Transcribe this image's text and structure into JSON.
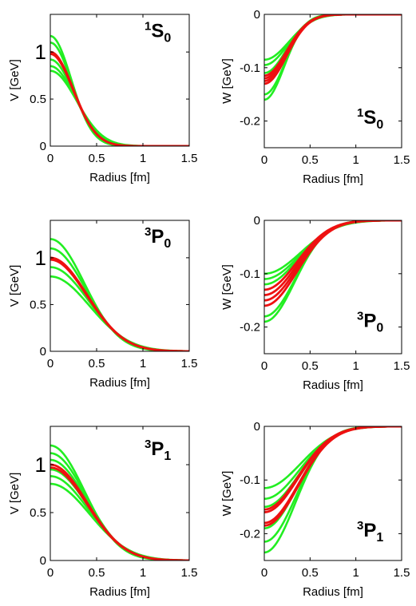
{
  "chart_data": [
    {
      "type": "line",
      "panel": "V",
      "wave": {
        "sup": "1",
        "main": "S",
        "sub": "0"
      },
      "xlabel": "Radius [fm]",
      "ylabel": "V [GeV]",
      "xlim": [
        0,
        1.5
      ],
      "ylim": [
        0,
        1.4
      ],
      "xticks": [
        "0",
        "0.5",
        "1",
        "1.5"
      ],
      "xtick_values": [
        0,
        0.5,
        1,
        1.5
      ],
      "yticks": [
        "0",
        "0.5",
        "1"
      ],
      "ytick_values": [
        0,
        0.5,
        1
      ],
      "big_tick": "1",
      "colors": {
        "band": "#22ee22",
        "central": "#ee1111"
      },
      "band_depths": [
        0.8,
        0.85,
        0.92,
        1.1,
        1.17
      ],
      "band_widths": [
        0.4,
        0.38,
        0.36,
        0.33,
        0.32
      ],
      "central_depths": [
        0.98,
        1.0
      ],
      "central_width": 0.35,
      "label_ypos": 1.16
    },
    {
      "type": "line",
      "panel": "W",
      "wave": {
        "sup": "1",
        "main": "S",
        "sub": "0"
      },
      "xlabel": "Radius [fm]",
      "ylabel": "W [GeV]",
      "xlim": [
        0,
        1.5
      ],
      "ylim": [
        -0.25,
        0
      ],
      "xticks": [
        "0",
        "0.5",
        "1",
        "1.5"
      ],
      "xtick_values": [
        0,
        0.5,
        1,
        1.5
      ],
      "yticks": [
        "0",
        "-0.1",
        "-0.2"
      ],
      "ytick_values": [
        0,
        -0.1,
        -0.2
      ],
      "colors": {
        "band": "#22ee22",
        "central": "#ee1111"
      },
      "band_depths": [
        -0.085,
        -0.095,
        -0.11,
        -0.15,
        -0.16
      ],
      "band_widths": [
        0.38,
        0.36,
        0.34,
        0.32,
        0.31
      ],
      "central_depths": [
        -0.115,
        -0.12,
        -0.125,
        -0.13
      ],
      "central_width": 0.34,
      "label_ypos": -0.205
    },
    {
      "type": "line",
      "panel": "V",
      "wave": {
        "sup": "3",
        "main": "P",
        "sub": "0"
      },
      "xlabel": "Radius [fm]",
      "ylabel": "V [GeV]",
      "xlim": [
        0,
        1.5
      ],
      "ylim": [
        0,
        1.4
      ],
      "xticks": [
        "0",
        "0.5",
        "1",
        "1.5"
      ],
      "xtick_values": [
        0,
        0.5,
        1,
        1.5
      ],
      "yticks": [
        "0",
        "0.5",
        "1"
      ],
      "ytick_values": [
        0,
        0.5,
        1
      ],
      "big_tick": "1",
      "colors": {
        "band": "#22ee22",
        "central": "#ee1111"
      },
      "band_depths": [
        0.8,
        0.9,
        1.1,
        1.2
      ],
      "band_widths": [
        0.6,
        0.58,
        0.54,
        0.52
      ],
      "central_depths": [
        0.98,
        1.0
      ],
      "central_width": 0.56,
      "label_ypos": 1.16
    },
    {
      "type": "line",
      "panel": "W",
      "wave": {
        "sup": "3",
        "main": "P",
        "sub": "0"
      },
      "xlabel": "Radius [fm]",
      "ylabel": "W [GeV]",
      "xlim": [
        0,
        1.5
      ],
      "ylim": [
        -0.25,
        0
      ],
      "xticks": [
        "0",
        "0.5",
        "1",
        "1.5"
      ],
      "xtick_values": [
        0,
        0.5,
        1,
        1.5
      ],
      "yticks": [
        "0",
        "-0.1",
        "-0.2"
      ],
      "ytick_values": [
        0,
        -0.1,
        -0.2
      ],
      "colors": {
        "band": "#22ee22",
        "central": "#ee1111"
      },
      "band_depths": [
        -0.1,
        -0.11,
        -0.12,
        -0.18,
        -0.19
      ],
      "band_widths": [
        0.56,
        0.54,
        0.52,
        0.48,
        0.47
      ],
      "central_depths": [
        -0.13,
        -0.14,
        -0.15,
        -0.16
      ],
      "central_width": 0.5,
      "label_ypos": -0.2
    },
    {
      "type": "line",
      "panel": "V",
      "wave": {
        "sup": "3",
        "main": "P",
        "sub": "1"
      },
      "xlabel": "Radius [fm]",
      "ylabel": "V [GeV]",
      "xlim": [
        0,
        1.5
      ],
      "ylim": [
        0,
        1.4
      ],
      "xticks": [
        "0",
        "0.5",
        "1",
        "1.5"
      ],
      "xtick_values": [
        0,
        0.5,
        1,
        1.5
      ],
      "yticks": [
        "0",
        "0.5",
        "1"
      ],
      "ytick_values": [
        0,
        0.5,
        1
      ],
      "big_tick": "1",
      "colors": {
        "band": "#22ee22",
        "central": "#ee1111"
      },
      "band_depths": [
        0.8,
        0.88,
        0.95,
        1.05,
        1.12,
        1.2
      ],
      "band_widths": [
        0.6,
        0.58,
        0.57,
        0.55,
        0.54,
        0.52
      ],
      "central_depths": [
        0.97,
        1.0
      ],
      "central_width": 0.56,
      "label_ypos": 1.1
    },
    {
      "type": "line",
      "panel": "W",
      "wave": {
        "sup": "3",
        "main": "P",
        "sub": "1"
      },
      "xlabel": "Radius [fm]",
      "ylabel": "W [GeV]",
      "xlim": [
        0,
        1.5
      ],
      "ylim": [
        -0.25,
        0
      ],
      "xticks": [
        "0",
        "0.5",
        "1",
        "1.5"
      ],
      "xtick_values": [
        0,
        0.5,
        1,
        1.5
      ],
      "yticks": [
        "0",
        "-0.1",
        "-0.2"
      ],
      "ytick_values": [
        0,
        -0.1,
        -0.2
      ],
      "colors": {
        "band": "#22ee22",
        "central": "#ee1111"
      },
      "band_depths": [
        -0.115,
        -0.135,
        -0.15,
        -0.19,
        -0.215,
        -0.235
      ],
      "band_widths": [
        0.56,
        0.54,
        0.53,
        0.5,
        0.49,
        0.48
      ],
      "central_depths": [
        -0.155,
        -0.16,
        -0.18,
        -0.185
      ],
      "central_width": 0.52,
      "label_ypos": -0.205
    }
  ]
}
